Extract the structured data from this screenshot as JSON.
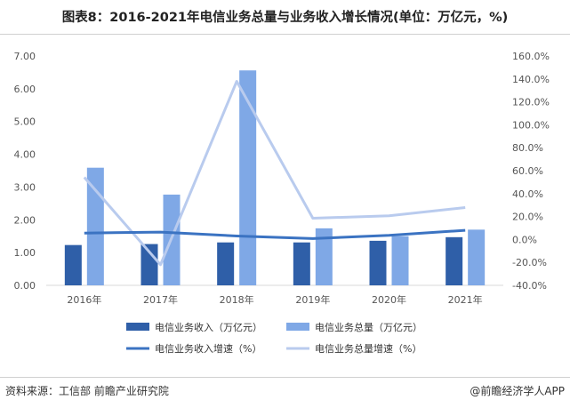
{
  "title": "图表8：2016-2021年电信业务总量与业务收入增长情况(单位：万亿元，%)",
  "footer": {
    "source": "资料来源：工信部 前瞻产业研究院",
    "brand": "@前瞻经济学人APP"
  },
  "colors": {
    "revenue_bar": "#2f5fa8",
    "volume_bar": "#7fa8e6",
    "revenue_growth_line": "#3b73c2",
    "volume_growth_line": "#b9cbee"
  },
  "chart_data": {
    "type": "bar",
    "categories": [
      "2016年",
      "2017年",
      "2018年",
      "2019年",
      "2020年",
      "2021年"
    ],
    "y_left": {
      "range": [
        0,
        7
      ],
      "ticks": [
        "0.00",
        "1.00",
        "2.00",
        "3.00",
        "4.00",
        "5.00",
        "6.00",
        "7.00"
      ]
    },
    "y_right": {
      "range": [
        -40,
        160
      ],
      "ticks": [
        "-40.0%",
        "-20.0%",
        "0.0%",
        "20.0%",
        "40.0%",
        "60.0%",
        "80.0%",
        "100.0%",
        "120.0%",
        "140.0%",
        "160.0%"
      ]
    },
    "series": [
      {
        "name": "电信业务收入（万亿元）",
        "kind": "bar",
        "axis": "left",
        "values": [
          1.23,
          1.26,
          1.31,
          1.31,
          1.36,
          1.47
        ]
      },
      {
        "name": "电信业务总量（万亿元）",
        "kind": "bar",
        "axis": "left",
        "values": [
          3.59,
          2.77,
          6.56,
          1.74,
          1.5,
          1.7
        ]
      },
      {
        "name": "电信业务收入增速（%）",
        "kind": "line",
        "axis": "right",
        "values": [
          5.6,
          6.4,
          3.0,
          0.8,
          3.6,
          8.0
        ]
      },
      {
        "name": "电信业务总量增速（%）",
        "kind": "line",
        "axis": "right",
        "values": [
          54.2,
          -22.0,
          137.9,
          18.5,
          20.6,
          27.8
        ]
      }
    ],
    "grid": false,
    "legend_position": "bottom"
  }
}
